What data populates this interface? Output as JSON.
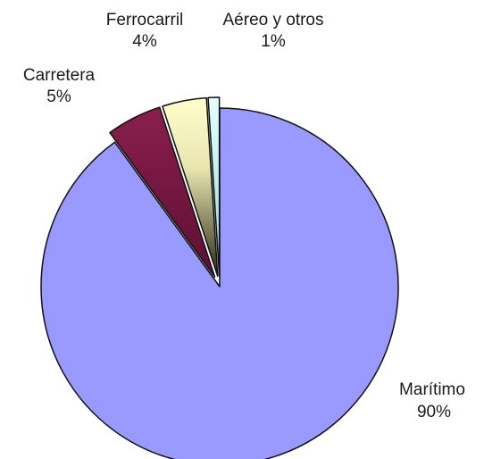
{
  "chart_data": {
    "type": "pie",
    "title": "",
    "slices": [
      {
        "label": "Marítimo",
        "value": 90,
        "value_label": "90%",
        "color": "#9999ff",
        "exploded": false
      },
      {
        "label": "Carretera",
        "value": 5,
        "value_label": "5%",
        "color": "#993366",
        "exploded": true
      },
      {
        "label": "Ferrocarril",
        "value": 4,
        "value_label": "4%",
        "color": "#ffffcc",
        "exploded": true
      },
      {
        "label": "Aéreo y otros",
        "value": 1,
        "value_label": "1%",
        "color": "#ccffff",
        "exploded": true
      }
    ],
    "legend": "none"
  }
}
